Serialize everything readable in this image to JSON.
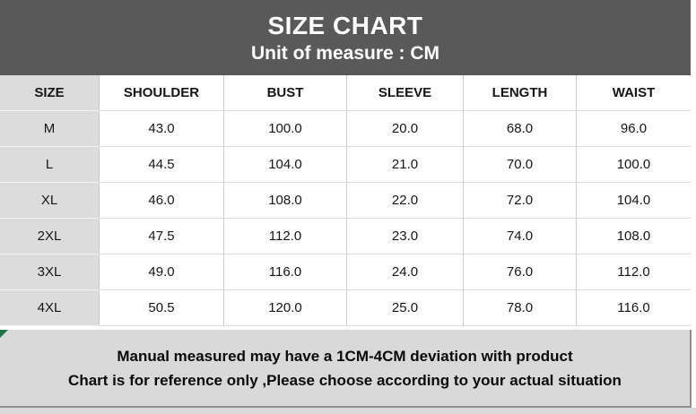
{
  "banner": {
    "title": "SIZE CHART",
    "subtitle": "Unit of measure : CM"
  },
  "chart_data": {
    "type": "table",
    "title": "SIZE CHART",
    "subtitle": "Unit of measure : CM",
    "unit": "CM",
    "columns": [
      "SIZE",
      "SHOULDER",
      "BUST",
      "SLEEVE",
      "LENGTH",
      "WAIST"
    ],
    "rows": [
      [
        "M",
        "43.0",
        "100.0",
        "20.0",
        "68.0",
        "96.0"
      ],
      [
        "L",
        "44.5",
        "104.0",
        "21.0",
        "70.0",
        "100.0"
      ],
      [
        "XL",
        "46.0",
        "108.0",
        "22.0",
        "72.0",
        "104.0"
      ],
      [
        "2XL",
        "47.5",
        "112.0",
        "23.0",
        "74.0",
        "108.0"
      ],
      [
        "3XL",
        "49.0",
        "116.0",
        "24.0",
        "76.0",
        "112.0"
      ],
      [
        "4XL",
        "50.5",
        "120.0",
        "25.0",
        "78.0",
        "116.0"
      ]
    ],
    "notes": [
      "Manual measured may have a 1CM-4CM deviation with product",
      "Chart is for reference only ,Please choose according to your actual situation"
    ]
  },
  "colors": {
    "banner_bg": "#595959",
    "banner_text": "#ffffff",
    "size_column_bg": "#dcdcdc",
    "footer_bg": "#d9d9d9",
    "gridline": "#d0d0d0",
    "footer_border": "#8f8f8f",
    "corner_flag_green": "#1f7244"
  }
}
